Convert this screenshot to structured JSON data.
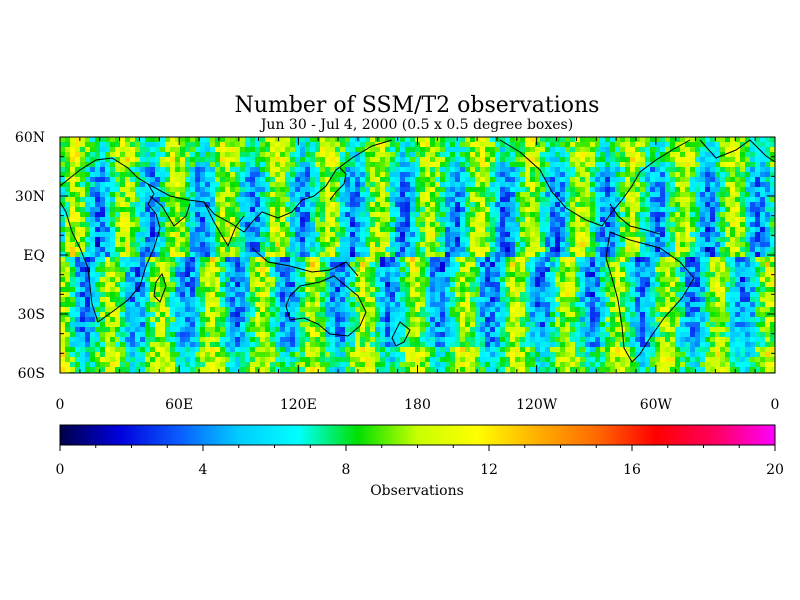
{
  "chart_data": {
    "type": "heatmap",
    "title": "Number of SSM/T2 observations",
    "subtitle": "Jun 30 - Jul 4, 2000 (0.5 x 0.5 degree boxes)",
    "x_tick_labels": [
      "0",
      "60E",
      "120E",
      "180",
      "120W",
      "60W",
      "0"
    ],
    "y_tick_labels": [
      "60N",
      "30N",
      "EQ",
      "30S",
      "60S"
    ],
    "xlim": [
      0,
      360
    ],
    "ylim": [
      -60,
      60
    ],
    "colorbar": {
      "label": "Observations",
      "range": [
        0,
        20
      ],
      "tick_labels": [
        "0",
        "4",
        "8",
        "12",
        "16",
        "20"
      ],
      "ticks": [
        0,
        4,
        8,
        12,
        16,
        20
      ],
      "colors": [
        "#00004a",
        "#0000dc",
        "#0a5cff",
        "#00ccff",
        "#00ffff",
        "#00e000",
        "#c8ff00",
        "#ffff00",
        "#ffb000",
        "#ff6a00",
        "#ff0000",
        "#ff0060",
        "#ff00ff"
      ]
    },
    "typical_values": {
      "background_mean": 7,
      "swath_gap_minimum": 2,
      "swath_overlap_maximum": 12
    },
    "grid": false
  }
}
